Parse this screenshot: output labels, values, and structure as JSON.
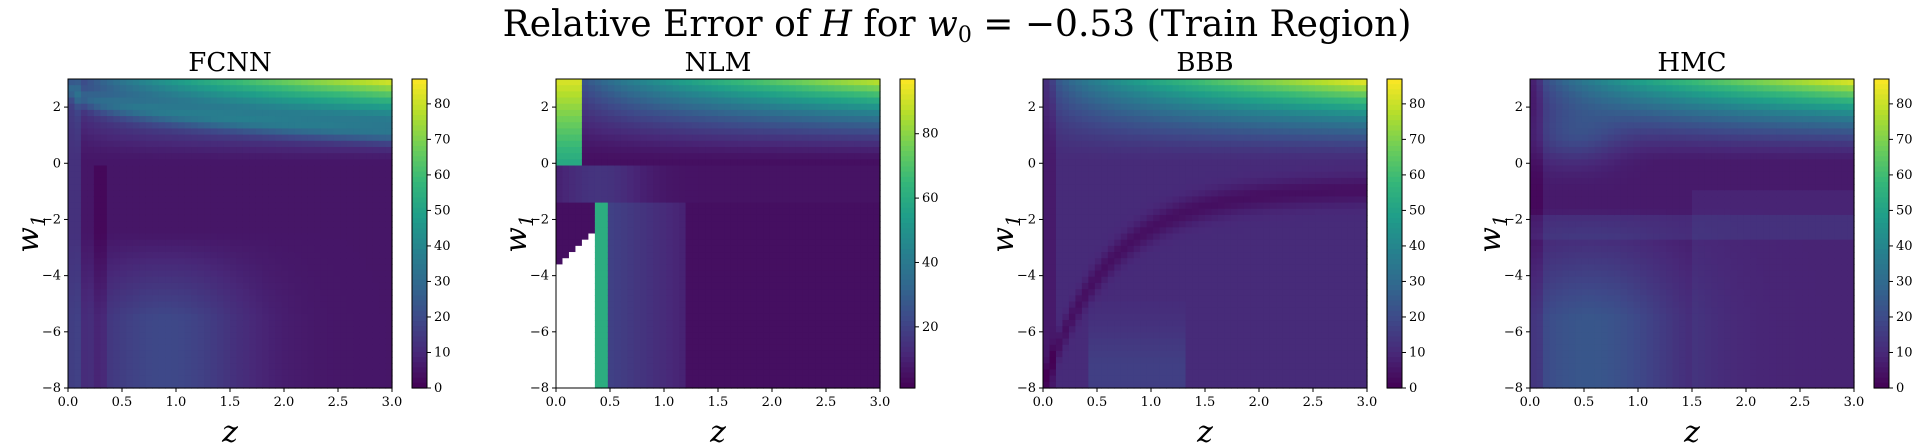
{
  "figure": {
    "title_parts": [
      "Relative Error of ",
      "H",
      " for ",
      "w",
      "0",
      " = −0.53 (Train Region)"
    ]
  },
  "colormap": [
    "#440154",
    "#482878",
    "#3e4989",
    "#31688e",
    "#26828e",
    "#1f9e89",
    "#35b779",
    "#6ece58",
    "#b5de2b",
    "#fde725"
  ],
  "chart_data": [
    {
      "type": "heatmap",
      "title": "FCNN",
      "xlabel": "z",
      "ylabel": "w1",
      "xlim": [
        0.0,
        3.0
      ],
      "ylim": [
        -8,
        3
      ],
      "x_ticks": [
        "0.0",
        "0.5",
        "1.0",
        "1.5",
        "2.0",
        "2.5",
        "3.0"
      ],
      "y_ticks": [
        "2",
        "0",
        "−2",
        "−4",
        "−6",
        "−8"
      ],
      "colorbar_range": [
        0,
        87
      ],
      "colorbar_ticks": [
        "0",
        "10",
        "20",
        "30",
        "40",
        "50",
        "60",
        "70",
        "80"
      ],
      "grid_resolution": [
        50,
        50
      ],
      "max_value": 87,
      "missing_region": false
    },
    {
      "type": "heatmap",
      "title": "NLM",
      "xlabel": "z",
      "ylabel": "w1",
      "xlim": [
        0.0,
        3.0
      ],
      "ylim": [
        -8,
        3
      ],
      "x_ticks": [
        "0.0",
        "0.5",
        "1.0",
        "1.5",
        "2.0",
        "2.5",
        "3.0"
      ],
      "y_ticks": [
        "2",
        "0",
        "−2",
        "−4",
        "−6",
        "−8"
      ],
      "colorbar_range": [
        1,
        97
      ],
      "colorbar_ticks": [
        "20",
        "40",
        "60",
        "80"
      ],
      "grid_resolution": [
        50,
        50
      ],
      "max_value": 97,
      "missing_region": true
    },
    {
      "type": "heatmap",
      "title": "BBB",
      "xlabel": "z",
      "ylabel": "w1",
      "xlim": [
        0.0,
        3.0
      ],
      "ylim": [
        -8,
        3
      ],
      "x_ticks": [
        "0.0",
        "0.5",
        "1.0",
        "1.5",
        "2.0",
        "2.5",
        "3.0"
      ],
      "y_ticks": [
        "2",
        "0",
        "−2",
        "−4",
        "−6",
        "−8"
      ],
      "colorbar_range": [
        0,
        87
      ],
      "colorbar_ticks": [
        "0",
        "10",
        "20",
        "30",
        "40",
        "50",
        "60",
        "70",
        "80"
      ],
      "grid_resolution": [
        50,
        50
      ],
      "max_value": 87,
      "missing_region": false
    },
    {
      "type": "heatmap",
      "title": "HMC",
      "xlabel": "z",
      "ylabel": "w1",
      "xlim": [
        0.0,
        3.0
      ],
      "ylim": [
        -8,
        3
      ],
      "x_ticks": [
        "0.0",
        "0.5",
        "1.0",
        "1.5",
        "2.0",
        "2.5",
        "3.0"
      ],
      "y_ticks": [
        "2",
        "0",
        "−2",
        "−4",
        "−6",
        "−8"
      ],
      "colorbar_range": [
        0,
        87
      ],
      "colorbar_ticks": [
        "0",
        "10",
        "20",
        "30",
        "40",
        "50",
        "60",
        "70",
        "80"
      ],
      "grid_resolution": [
        50,
        50
      ],
      "max_value": 87,
      "missing_region": false
    }
  ]
}
